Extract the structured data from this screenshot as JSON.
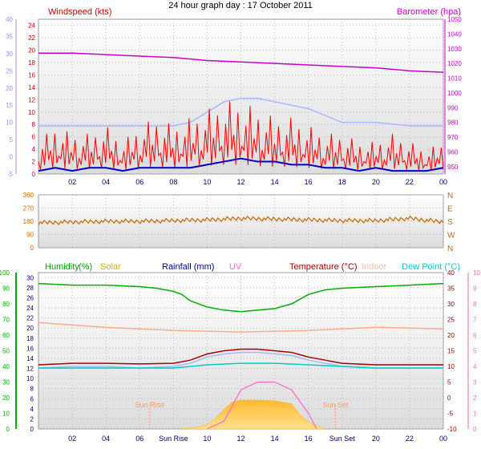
{
  "title": "24 hour graph day : 17 October 2011",
  "x_ticks": [
    "02",
    "04",
    "06",
    "08",
    "10",
    "12",
    "14",
    "16",
    "18",
    "20",
    "22",
    "00"
  ],
  "x_ticks_bottom": [
    "02",
    "04",
    "06",
    "Sun Rise",
    "10",
    "12",
    "14",
    "16",
    "Sun Set",
    "20",
    "22",
    "00"
  ],
  "colors": {
    "wind": "#ff0000",
    "gust": "#ff0000",
    "avg": "#0000cc",
    "temp_pale": "#a8b8ff",
    "baro": "#cc00cc",
    "dir": "#cc6600",
    "humidity": "#00b000",
    "solar": "#ffc040",
    "rain": "#0000aa",
    "uv": "#ff66cc",
    "temperature": "#aa0000",
    "indoor": "#ffaa88",
    "dew": "#00cccc",
    "axis_left": "#8899ee",
    "axis_right_uv": "#ff66aa"
  },
  "chart_data": [
    {
      "type": "line",
      "name": "wind-barometer",
      "labels": {
        "left": "Windspeed (kts)",
        "right": "Barometer (hpa)"
      },
      "y_left_ticks": [
        0,
        2,
        4,
        6,
        8,
        10,
        12,
        14,
        16,
        18,
        20,
        22,
        24
      ],
      "y_left_outer_ticks": [
        -5,
        0,
        5,
        10,
        15,
        20,
        25,
        30,
        35,
        40
      ],
      "y_right_ticks": [
        950,
        960,
        970,
        980,
        990,
        1000,
        1010,
        1020,
        1030,
        1040,
        1050
      ],
      "ylim": [
        0,
        25
      ],
      "series": [
        {
          "key": "barometer",
          "axis": "right",
          "x": [
            0,
            2,
            4,
            6,
            8,
            10,
            12,
            14,
            16,
            18,
            20,
            22,
            24
          ],
          "values": [
            1027,
            1027,
            1026,
            1025,
            1024,
            1022,
            1021,
            1020,
            1019,
            1018,
            1017,
            1015,
            1014
          ]
        },
        {
          "key": "outer",
          "axis": "outer",
          "x": [
            0,
            2,
            4,
            6,
            8,
            9,
            10,
            11,
            12,
            13,
            14,
            15,
            16,
            17,
            18,
            20,
            22,
            24
          ],
          "values": [
            9,
            9,
            9,
            9,
            9,
            10,
            13,
            16,
            17,
            17,
            16,
            15,
            14,
            12,
            10,
            10,
            9,
            9
          ]
        },
        {
          "key": "gust",
          "x": [
            0,
            1,
            2,
            3,
            4,
            5,
            6,
            7,
            8,
            9,
            10,
            11,
            12,
            13,
            14,
            15,
            16,
            17,
            18,
            19,
            20,
            21,
            22,
            23,
            24
          ],
          "values": [
            4,
            6,
            5,
            5,
            6,
            4,
            6,
            7,
            6,
            7,
            8,
            9,
            9,
            8,
            7,
            7,
            6,
            5,
            5,
            4,
            4,
            5,
            4,
            3,
            4
          ]
        },
        {
          "key": "average",
          "x": [
            0,
            1,
            2,
            3,
            4,
            5,
            6,
            7,
            8,
            9,
            10,
            11,
            12,
            13,
            14,
            15,
            16,
            17,
            18,
            19,
            20,
            21,
            22,
            23,
            24
          ],
          "values": [
            0.5,
            1,
            0.5,
            1,
            1,
            0.5,
            1,
            1,
            1,
            1,
            1.5,
            2,
            2.5,
            2,
            2,
            1.5,
            1.5,
            1,
            1,
            0.5,
            1,
            0.5,
            0.5,
            0.5,
            1
          ]
        }
      ]
    },
    {
      "type": "line",
      "name": "wind-direction",
      "y_left_ticks": [
        0,
        90,
        180,
        270,
        360
      ],
      "y_right_ticks": [
        "N",
        "W",
        "S",
        "E",
        "N"
      ],
      "ylim": [
        0,
        360
      ],
      "series": [
        {
          "key": "direction",
          "x": [
            0,
            2,
            4,
            6,
            8,
            10,
            12,
            14,
            16,
            18,
            20,
            22,
            24
          ],
          "values": [
            170,
            175,
            180,
            180,
            185,
            190,
            200,
            195,
            190,
            185,
            185,
            200,
            175
          ]
        }
      ]
    },
    {
      "type": "line",
      "name": "humidity-temperature",
      "labels": {
        "humidity": "Humidity",
        "humidity_unit": "(%)",
        "solar": "Solar",
        "rainfall": "Rainfall (mm)",
        "uv": "UV",
        "temperature": "Temperature (°C)",
        "indoor": "Indoor",
        "dewpoint": "Dew Point (°C)",
        "sunrise": "Sun Rise",
        "sunset": "Sun Set"
      },
      "y_outer_ticks": [
        0,
        10,
        20,
        30,
        40,
        50,
        60,
        70,
        80,
        90,
        100
      ],
      "y_left_ticks": [
        0,
        2,
        4,
        6,
        8,
        10,
        12,
        14,
        16,
        18,
        20,
        22,
        24,
        26,
        28,
        30
      ],
      "y_right_ticks": [
        -10,
        -5,
        0,
        5,
        10,
        15,
        20,
        25,
        30,
        35,
        40
      ],
      "y_right_outer_ticks": [
        0,
        1,
        2,
        3,
        4,
        5,
        6,
        7,
        8,
        9,
        10
      ],
      "series": [
        {
          "key": "humidity",
          "axis": "outer",
          "x": [
            0,
            2,
            4,
            6,
            7,
            8,
            8.5,
            9,
            10,
            11,
            12,
            13,
            14,
            15,
            16,
            17,
            18,
            20,
            22,
            24
          ],
          "values": [
            93,
            92,
            92,
            91,
            90,
            88,
            86,
            82,
            78,
            76,
            75,
            76,
            77,
            80,
            86,
            89,
            90,
            91,
            92,
            93
          ]
        },
        {
          "key": "indoor",
          "axis": "temp",
          "x": [
            0,
            4,
            8,
            12,
            16,
            20,
            24
          ],
          "values": [
            24,
            22.5,
            21.5,
            21,
            21.5,
            22.5,
            22
          ]
        },
        {
          "key": "temperature",
          "axis": "temp",
          "x": [
            0,
            2,
            4,
            6,
            8,
            9,
            10,
            11,
            12,
            13,
            14,
            15,
            16,
            17,
            18,
            20,
            22,
            24
          ],
          "values": [
            10.5,
            11,
            11,
            10.8,
            11,
            12,
            14,
            15,
            15.5,
            15.5,
            15,
            14.5,
            13,
            12,
            11,
            10.5,
            10.5,
            10.5
          ]
        },
        {
          "key": "pale",
          "axis": "temp",
          "x": [
            0,
            2,
            4,
            6,
            8,
            9,
            10,
            11,
            12,
            13,
            14,
            15,
            16,
            17,
            18,
            20,
            22,
            24
          ],
          "values": [
            9.5,
            10,
            10,
            9.5,
            10,
            11,
            13,
            14,
            14.5,
            14.5,
            14,
            13.5,
            12,
            11,
            10,
            9.5,
            9.5,
            9.5
          ]
        },
        {
          "key": "dewpoint",
          "axis": "temp",
          "x": [
            0,
            4,
            8,
            10,
            12,
            14,
            16,
            18,
            20,
            24
          ],
          "values": [
            9.5,
            9.5,
            9.5,
            10.5,
            11,
            11,
            10.5,
            10,
            9.5,
            9.5
          ]
        },
        {
          "key": "solar",
          "axis": "solar",
          "x": [
            8.5,
            9.5,
            10,
            10.5,
            11,
            11.5,
            12,
            13,
            14,
            15,
            15.5,
            16,
            17
          ],
          "values": [
            0,
            5,
            12,
            30,
            55,
            75,
            80,
            80,
            78,
            70,
            40,
            20,
            0
          ]
        },
        {
          "key": "uv",
          "axis": "uv",
          "x": [
            10,
            11,
            11.5,
            12,
            13,
            14,
            15,
            16,
            16.5
          ],
          "values": [
            0,
            0.5,
            1.5,
            2.5,
            3,
            3,
            2.5,
            1,
            0
          ]
        }
      ]
    }
  ]
}
